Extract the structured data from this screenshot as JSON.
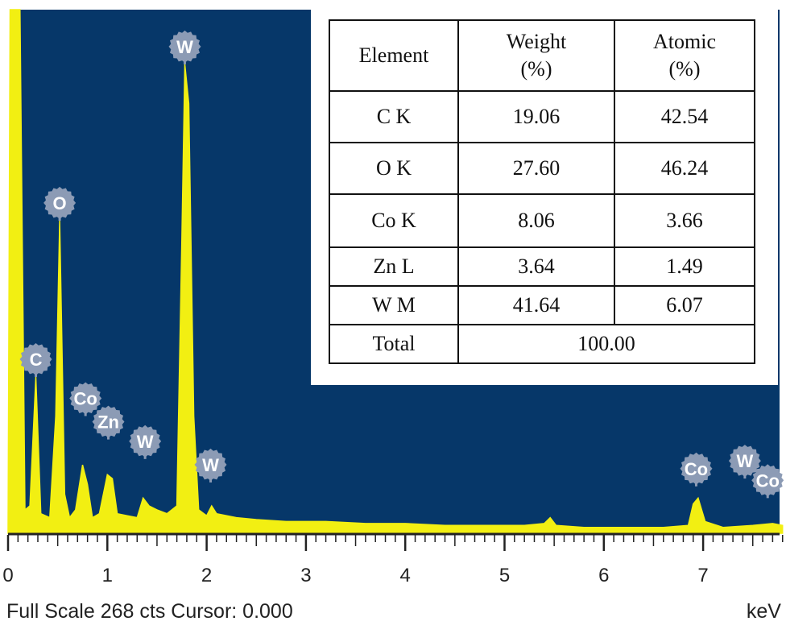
{
  "chart_data": {
    "type": "line",
    "title": "",
    "xlabel": "keV",
    "ylabel": "",
    "xlim": [
      0,
      7.8
    ],
    "ylim": [
      0,
      268
    ],
    "x_ticks": [
      "0",
      "1",
      "2",
      "3",
      "4",
      "5",
      "6",
      "7"
    ],
    "footer": "Full Scale 268 cts Cursor: 0.000",
    "colors": {
      "background": "#063769",
      "spectrum": "#f2ef12",
      "axis": "#222222",
      "badge": "#8c9bb5"
    },
    "series": [
      {
        "values": [
          [
            0.0,
            0
          ],
          [
            0.02,
            268
          ],
          [
            0.12,
            268
          ],
          [
            0.17,
            12
          ],
          [
            0.22,
            14
          ],
          [
            0.28,
            80
          ],
          [
            0.33,
            10
          ],
          [
            0.42,
            8
          ],
          [
            0.48,
            60
          ],
          [
            0.52,
            160
          ],
          [
            0.57,
            20
          ],
          [
            0.62,
            8
          ],
          [
            0.68,
            12
          ],
          [
            0.75,
            35
          ],
          [
            0.8,
            25
          ],
          [
            0.85,
            8
          ],
          [
            0.92,
            10
          ],
          [
            1.0,
            30
          ],
          [
            1.05,
            28
          ],
          [
            1.1,
            10
          ],
          [
            1.2,
            9
          ],
          [
            1.3,
            8
          ],
          [
            1.36,
            18
          ],
          [
            1.42,
            14
          ],
          [
            1.5,
            12
          ],
          [
            1.6,
            10
          ],
          [
            1.7,
            14
          ],
          [
            1.75,
            150
          ],
          [
            1.78,
            240
          ],
          [
            1.82,
            220
          ],
          [
            1.87,
            60
          ],
          [
            1.92,
            12
          ],
          [
            2.0,
            9
          ],
          [
            2.05,
            14
          ],
          [
            2.1,
            10
          ],
          [
            2.3,
            8
          ],
          [
            2.5,
            7
          ],
          [
            2.8,
            6
          ],
          [
            3.2,
            6
          ],
          [
            3.6,
            5
          ],
          [
            4.0,
            5
          ],
          [
            4.4,
            4
          ],
          [
            4.8,
            4
          ],
          [
            5.2,
            4
          ],
          [
            5.4,
            5
          ],
          [
            5.46,
            8
          ],
          [
            5.52,
            4
          ],
          [
            5.8,
            3
          ],
          [
            6.2,
            3
          ],
          [
            6.6,
            3
          ],
          [
            6.85,
            4
          ],
          [
            6.9,
            15
          ],
          [
            6.95,
            18
          ],
          [
            7.02,
            6
          ],
          [
            7.2,
            3
          ],
          [
            7.5,
            4
          ],
          [
            7.7,
            5
          ],
          [
            7.8,
            4
          ]
        ]
      }
    ],
    "peaks": [
      {
        "label": "C",
        "x": 0.28,
        "y": 80
      },
      {
        "label": "O",
        "x": 0.52,
        "y": 160
      },
      {
        "label": "Co",
        "x": 0.78,
        "y": 60
      },
      {
        "label": "Zn",
        "x": 1.01,
        "y": 48
      },
      {
        "label": "W",
        "x": 1.38,
        "y": 38
      },
      {
        "label": "W",
        "x": 1.78,
        "y": 240
      },
      {
        "label": "W",
        "x": 2.04,
        "y": 26
      },
      {
        "label": "Co",
        "x": 6.93,
        "y": 24
      },
      {
        "label": "W",
        "x": 7.42,
        "y": 28
      },
      {
        "label": "Co",
        "x": 7.65,
        "y": 18
      }
    ]
  },
  "table": {
    "header": {
      "element": "Element",
      "weight": "Weight",
      "weight_unit": "(%)",
      "atomic": "Atomic",
      "atomic_unit": "(%)"
    },
    "rows": [
      {
        "element": "C K",
        "weight": "19.06",
        "atomic": "42.54"
      },
      {
        "element": "O K",
        "weight": "27.60",
        "atomic": "46.24"
      },
      {
        "element": "Co K",
        "weight": "8.06",
        "atomic": "3.66"
      },
      {
        "element": "Zn L",
        "weight": "3.64",
        "atomic": "1.49"
      },
      {
        "element": "W M",
        "weight": "41.64",
        "atomic": "6.07"
      }
    ],
    "total": {
      "label": "Total",
      "value": "100.00"
    }
  }
}
